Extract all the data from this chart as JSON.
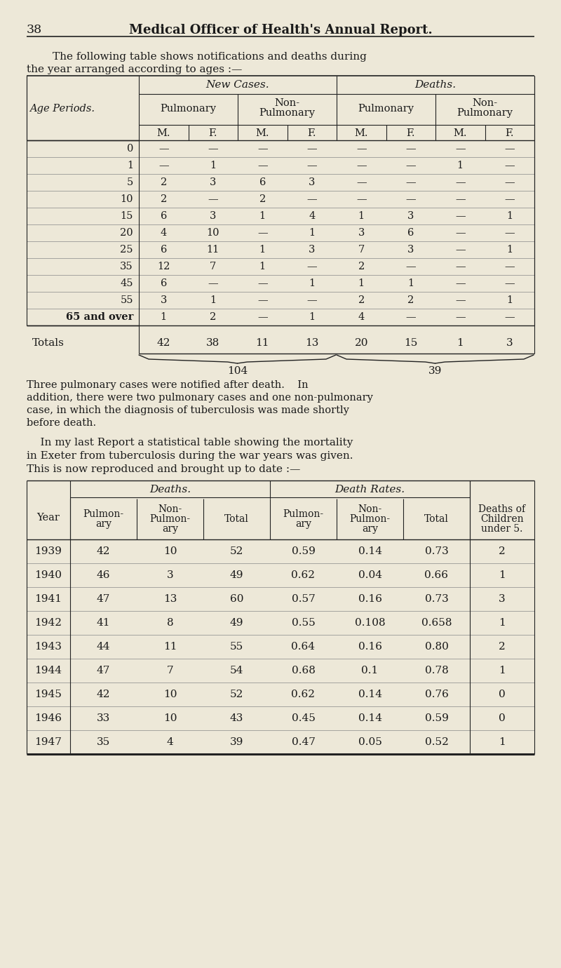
{
  "bg_color": "#ede8d8",
  "text_color": "#1a1a1a",
  "page_header_num": "38",
  "page_header_title": "Medical Officer of Health's Annual Report.",
  "intro_text1": "The following table shows notifications and deaths during",
  "intro_text2": "the year arranged according to ages :—",
  "table1": {
    "rows": [
      {
        "age": "0",
        "data": [
          "—",
          "—",
          "—",
          "—",
          "—",
          "—",
          "—",
          "—"
        ]
      },
      {
        "age": "1",
        "data": [
          "—",
          "1",
          "—",
          "—",
          "—",
          "—",
          "1",
          "—"
        ]
      },
      {
        "age": "5",
        "data": [
          "2",
          "3",
          "6",
          "3",
          "—",
          "—",
          "—",
          "—"
        ]
      },
      {
        "age": "10",
        "data": [
          "2",
          "—",
          "2",
          "—",
          "—",
          "—",
          "—",
          "—"
        ]
      },
      {
        "age": "15",
        "data": [
          "6",
          "3",
          "1",
          "4",
          "1",
          "3",
          "—",
          "1"
        ]
      },
      {
        "age": "20",
        "data": [
          "4",
          "10",
          "—",
          "1",
          "3",
          "6",
          "—",
          "—"
        ]
      },
      {
        "age": "25",
        "data": [
          "6",
          "11",
          "1",
          "3",
          "7",
          "3",
          "—",
          "1"
        ]
      },
      {
        "age": "35",
        "data": [
          "12",
          "7",
          "1",
          "—",
          "2",
          "—",
          "—",
          "—"
        ]
      },
      {
        "age": "45",
        "data": [
          "6",
          "—",
          "—",
          "1",
          "1",
          "1",
          "—",
          "—"
        ]
      },
      {
        "age": "55",
        "data": [
          "3",
          "1",
          "—",
          "—",
          "2",
          "2",
          "—",
          "1"
        ]
      },
      {
        "age": "65 and over",
        "data": [
          "1",
          "2",
          "—",
          "1",
          "4",
          "—",
          "—",
          "—"
        ]
      }
    ],
    "totals": [
      "42",
      "38",
      "11",
      "13",
      "20",
      "15",
      "1",
      "3"
    ],
    "brace1_label": "104",
    "brace2_label": "39"
  },
  "paragraph1_lines": [
    "Three pulmonary cases were notified after death.    In",
    "addition, there were two pulmonary cases and one non-pulmonary",
    "case, in which the diagnosis of tuberculosis was made shortly",
    "before death."
  ],
  "intro2_lines": [
    "    In my last Report a statistical table showing the mortality",
    "in Exeter from tuberculosis during the war years was given.",
    "This is now reproduced and brought up to date :—"
  ],
  "table2": {
    "rows": [
      {
        "year": "1939",
        "pulm_d": "42",
        "nonpulm_d": "10",
        "total_d": "52",
        "pulm_r": "0.59",
        "nonpulm_r": "0.14",
        "total_r": "0.73",
        "children": "2"
      },
      {
        "year": "1940",
        "pulm_d": "46",
        "nonpulm_d": "3",
        "total_d": "49",
        "pulm_r": "0.62",
        "nonpulm_r": "0.04",
        "total_r": "0.66",
        "children": "1"
      },
      {
        "year": "1941",
        "pulm_d": "47",
        "nonpulm_d": "13",
        "total_d": "60",
        "pulm_r": "0.57",
        "nonpulm_r": "0.16",
        "total_r": "0.73",
        "children": "3"
      },
      {
        "year": "1942",
        "pulm_d": "41",
        "nonpulm_d": "8",
        "total_d": "49",
        "pulm_r": "0.55",
        "nonpulm_r": "0.108",
        "total_r": "0.658",
        "children": "1"
      },
      {
        "year": "1943",
        "pulm_d": "44",
        "nonpulm_d": "11",
        "total_d": "55",
        "pulm_r": "0.64",
        "nonpulm_r": "0.16",
        "total_r": "0.80",
        "children": "2"
      },
      {
        "year": "1944",
        "pulm_d": "47",
        "nonpulm_d": "7",
        "total_d": "54",
        "pulm_r": "0.68",
        "nonpulm_r": "0.1",
        "total_r": "0.78",
        "children": "1"
      },
      {
        "year": "1945",
        "pulm_d": "42",
        "nonpulm_d": "10",
        "total_d": "52",
        "pulm_r": "0.62",
        "nonpulm_r": "0.14",
        "total_r": "0.76",
        "children": "0"
      },
      {
        "year": "1946",
        "pulm_d": "33",
        "nonpulm_d": "10",
        "total_d": "43",
        "pulm_r": "0.45",
        "nonpulm_r": "0.14",
        "total_r": "0.59",
        "children": "0"
      },
      {
        "year": "1947",
        "pulm_d": "35",
        "nonpulm_d": "4",
        "total_d": "39",
        "pulm_r": "0.47",
        "nonpulm_r": "0.05",
        "total_r": "0.52",
        "children": "1"
      }
    ]
  }
}
